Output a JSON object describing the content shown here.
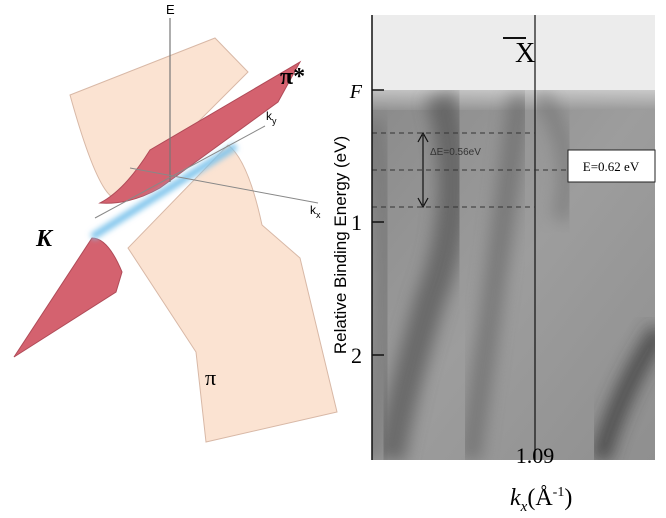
{
  "left": {
    "axis_e": "E",
    "axis_ky": {
      "base": "k",
      "sub": "y"
    },
    "axis_kx": {
      "base": "k",
      "sub": "x"
    },
    "band_upper": "π*",
    "band_lower": "π",
    "point": "K"
  },
  "right": {
    "point_label": "X",
    "y_axis_title": "Relative Binding Energy (eV)",
    "y_ticks": [
      "F",
      "1",
      "2"
    ],
    "x_tick": "1.09",
    "x_axis_title": {
      "base": "k",
      "sub": "x",
      "open": "(Å",
      "exp": "-1",
      "close": ")"
    },
    "delta_label": "ΔE=0.56eV",
    "box_label": "E=0.62 eV"
  }
}
